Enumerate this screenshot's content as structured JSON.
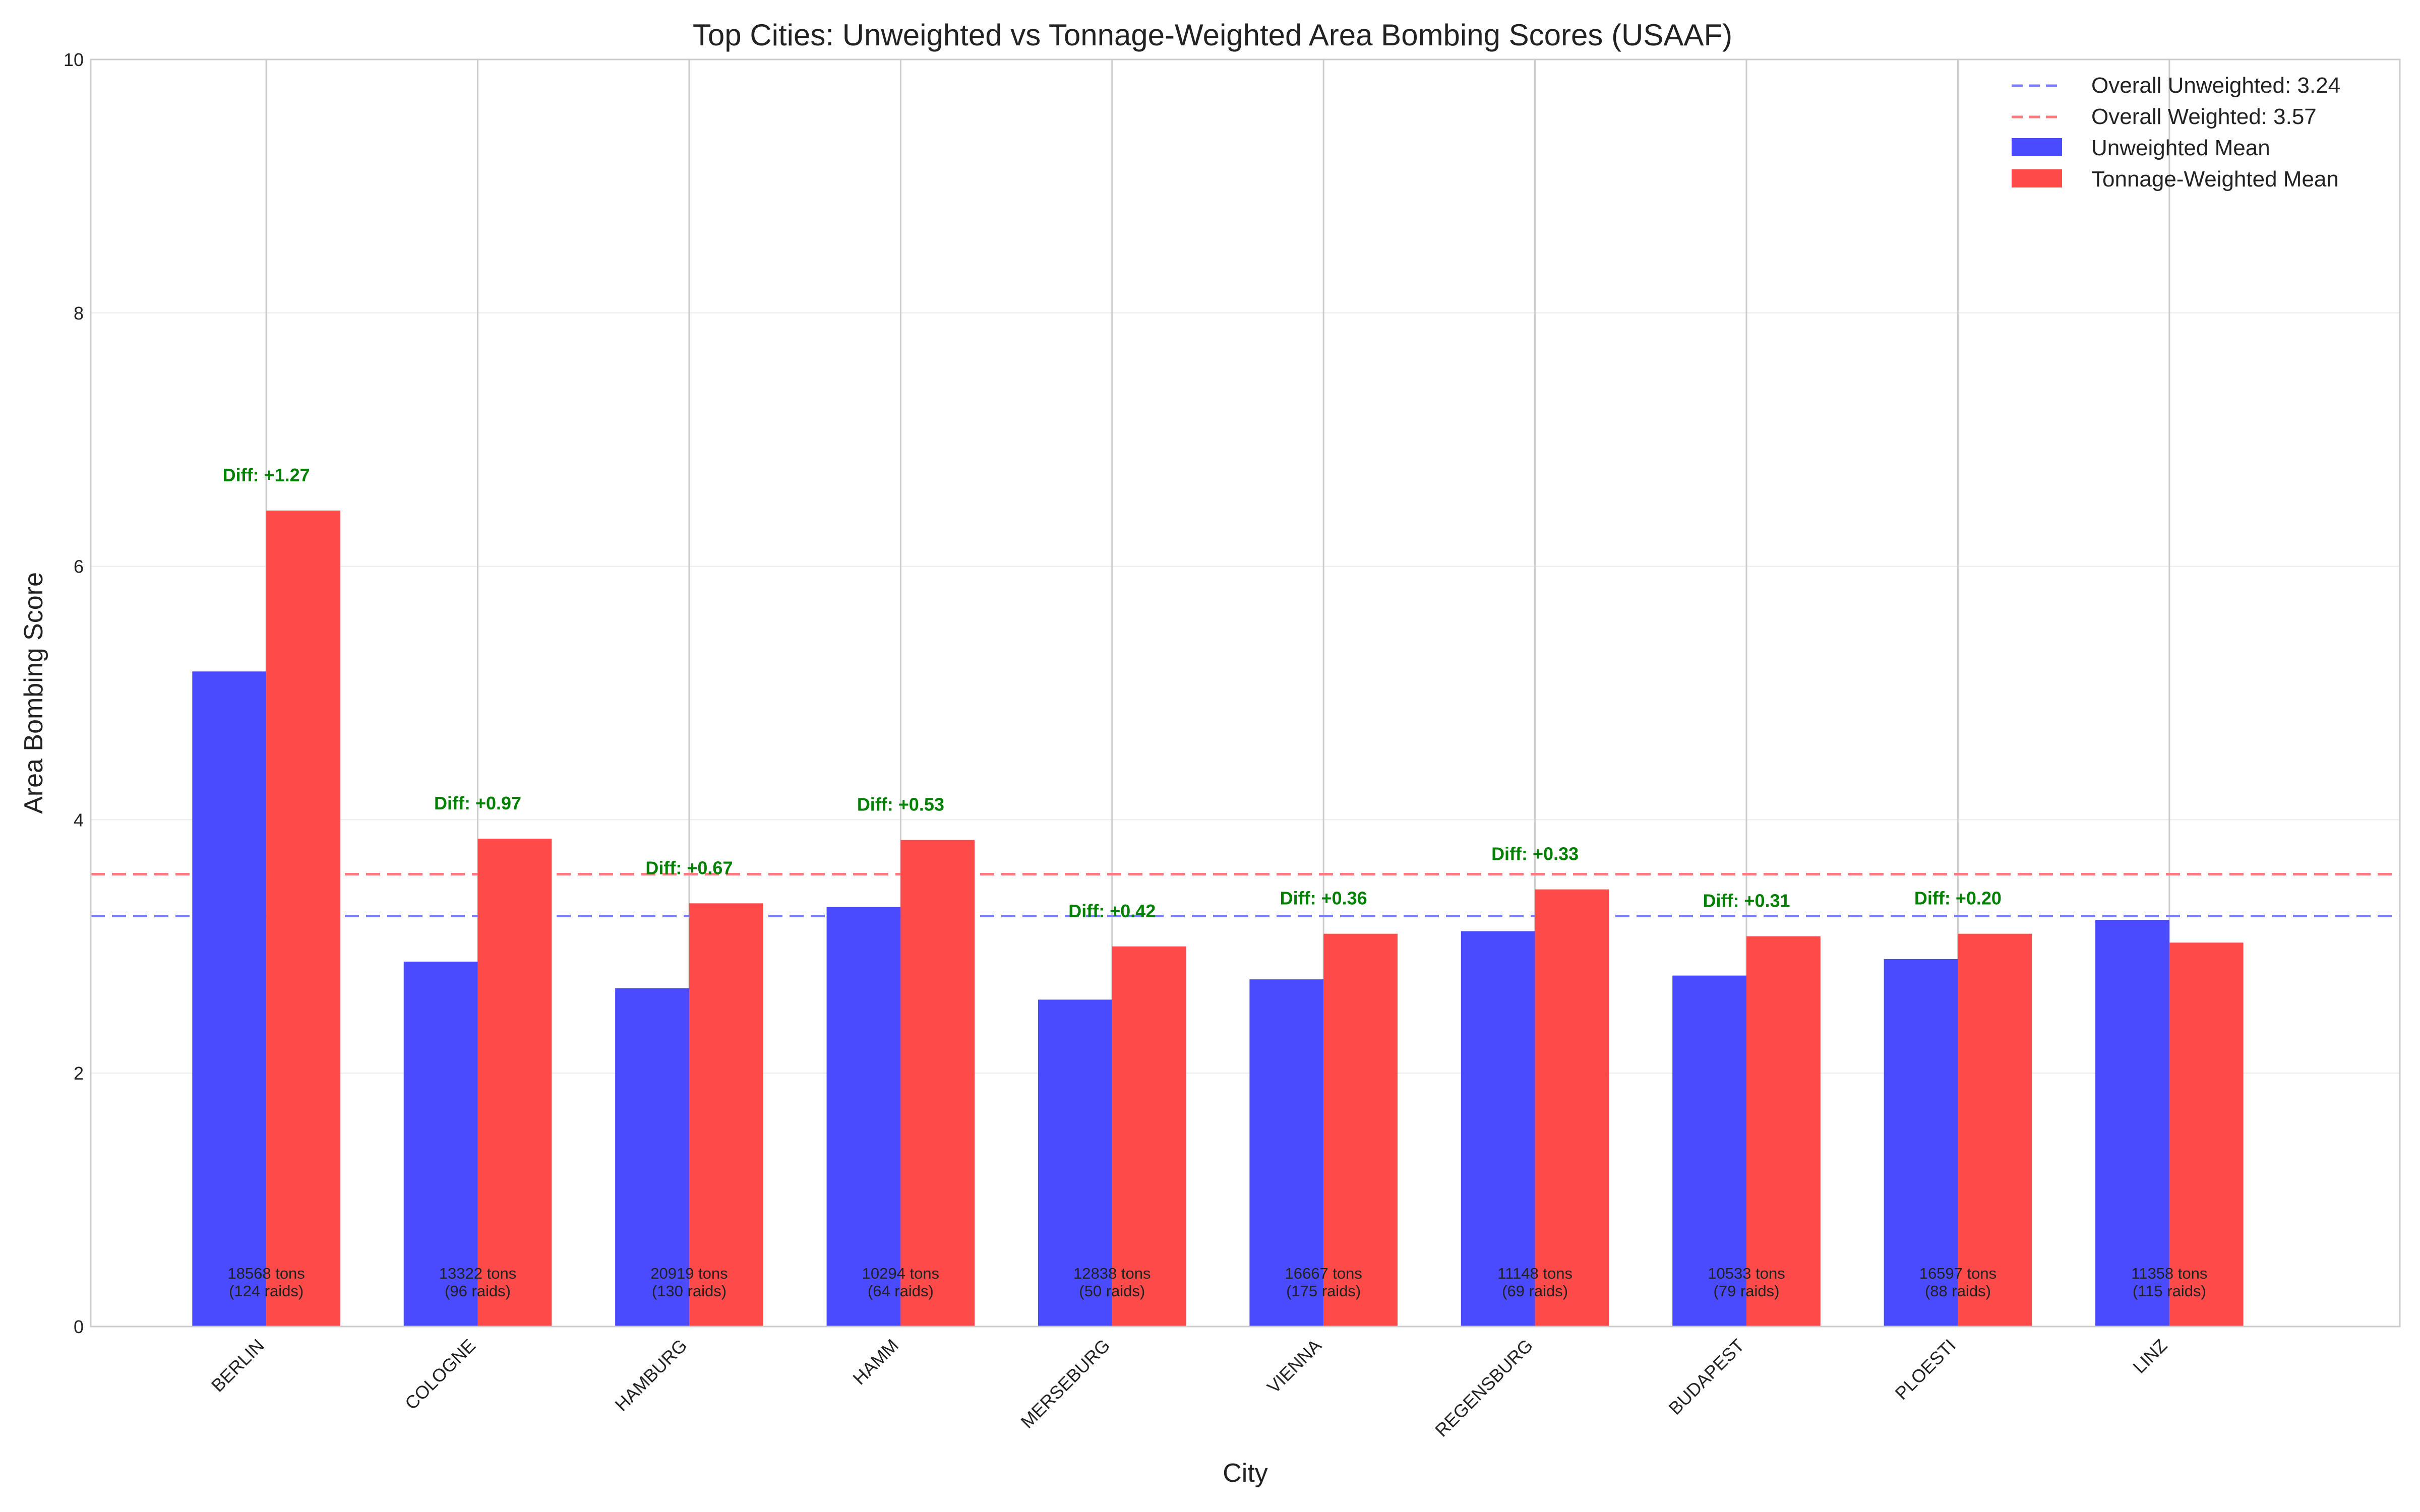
{
  "chart_data": {
    "type": "bar",
    "title": "Top Cities: Unweighted vs Tonnage-Weighted Area Bombing Scores (USAAF)",
    "xlabel": "City",
    "ylabel": "Area Bombing Score",
    "ylim": [
      0,
      10
    ],
    "yticks": [
      "0",
      "2",
      "4",
      "6",
      "8",
      "10"
    ],
    "grid": true,
    "legend_position": "top-right",
    "categories": [
      "BERLIN",
      "COLOGNE",
      "HAMBURG",
      "HAMM",
      "MERSEBURG",
      "VIENNA",
      "REGENSBURG",
      "BUDAPEST",
      "PLOESTI",
      "LINZ"
    ],
    "series": [
      {
        "name": "Unweighted Mean",
        "color": "#4a4aff",
        "values": [
          5.17,
          2.88,
          2.67,
          3.31,
          2.58,
          2.74,
          3.12,
          2.77,
          2.9,
          3.21
        ]
      },
      {
        "name": "Tonnage-Weighted Mean",
        "color": "#ff4a4a",
        "values": [
          6.44,
          3.85,
          3.34,
          3.84,
          3.0,
          3.1,
          3.45,
          3.08,
          3.1,
          3.03
        ]
      }
    ],
    "reference_lines": [
      {
        "label": "Overall Unweighted: 3.24",
        "value": 3.24,
        "color": "#7b7bff"
      },
      {
        "label": "Overall Weighted: 3.57",
        "value": 3.57,
        "color": "#ff7b7b"
      }
    ],
    "diff_labels": [
      "Diff: +1.27",
      "Diff: +0.97",
      "Diff: +0.67",
      "Diff: +0.53",
      "Diff: +0.42",
      "Diff: +0.36",
      "Diff: +0.33",
      "Diff: +0.31",
      "Diff: +0.20",
      null
    ],
    "tons_labels": [
      "18568 tons",
      "13322 tons",
      "20919 tons",
      "10294 tons",
      "12838 tons",
      "16667 tons",
      "11148 tons",
      "10533 tons",
      "16597 tons",
      "11358 tons"
    ],
    "raids_labels": [
      "(124 raids)",
      "(96 raids)",
      "(130 raids)",
      "(64 raids)",
      "(50 raids)",
      "(175 raids)",
      "(69 raids)",
      "(79 raids)",
      "(88 raids)",
      "(115 raids)"
    ]
  }
}
